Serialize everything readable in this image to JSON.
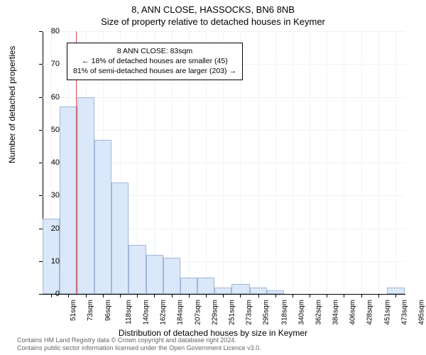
{
  "titles": {
    "main": "8, ANN CLOSE, HASSOCKS, BN6 8NB",
    "sub": "Size of property relative to detached houses in Keymer"
  },
  "chart": {
    "type": "histogram",
    "background_color": "#ffffff",
    "grid_color": "#eef3fa",
    "axis_color": "#000000",
    "bar_fill": "#dbe8f9",
    "bar_border": "#a0b8d8",
    "ref_line_color": "#d64545",
    "ylabel": "Number of detached properties",
    "xlabel": "Distribution of detached houses by size in Keymer",
    "ylim": [
      0,
      80
    ],
    "ytick_step": 10,
    "xlim": [
      40,
      507
    ],
    "xticks": [
      51,
      73,
      96,
      118,
      140,
      162,
      184,
      207,
      229,
      251,
      273,
      295,
      318,
      340,
      362,
      384,
      406,
      428,
      451,
      473,
      495
    ],
    "xtick_suffix": "sqm",
    "ref_line_x": 83,
    "bars": [
      {
        "x0": 40,
        "x1": 62,
        "y": 23
      },
      {
        "x0": 62,
        "x1": 85,
        "y": 57
      },
      {
        "x0": 85,
        "x1": 107,
        "y": 60
      },
      {
        "x0": 107,
        "x1": 129,
        "y": 47
      },
      {
        "x0": 129,
        "x1": 151,
        "y": 34
      },
      {
        "x0": 151,
        "x1": 174,
        "y": 15
      },
      {
        "x0": 174,
        "x1": 196,
        "y": 12
      },
      {
        "x0": 196,
        "x1": 218,
        "y": 11
      },
      {
        "x0": 218,
        "x1": 240,
        "y": 5
      },
      {
        "x0": 240,
        "x1": 262,
        "y": 5
      },
      {
        "x0": 262,
        "x1": 284,
        "y": 2
      },
      {
        "x0": 284,
        "x1": 307,
        "y": 3
      },
      {
        "x0": 307,
        "x1": 329,
        "y": 2
      },
      {
        "x0": 329,
        "x1": 351,
        "y": 1
      },
      {
        "x0": 351,
        "x1": 373,
        "y": 0
      },
      {
        "x0": 373,
        "x1": 395,
        "y": 0
      },
      {
        "x0": 395,
        "x1": 418,
        "y": 0
      },
      {
        "x0": 418,
        "x1": 440,
        "y": 0
      },
      {
        "x0": 440,
        "x1": 462,
        "y": 0
      },
      {
        "x0": 462,
        "x1": 484,
        "y": 0
      },
      {
        "x0": 484,
        "x1": 507,
        "y": 2
      }
    ]
  },
  "annotation": {
    "line1": "8 ANN CLOSE: 83sqm",
    "line2": "← 18% of detached houses are smaller (45)",
    "line3": "81% of semi-detached houses are larger (203) →"
  },
  "footer": {
    "line1": "Contains HM Land Registry data © Crown copyright and database right 2024.",
    "line2": "Contains public sector information licensed under the Open Government Licence v3.0."
  }
}
